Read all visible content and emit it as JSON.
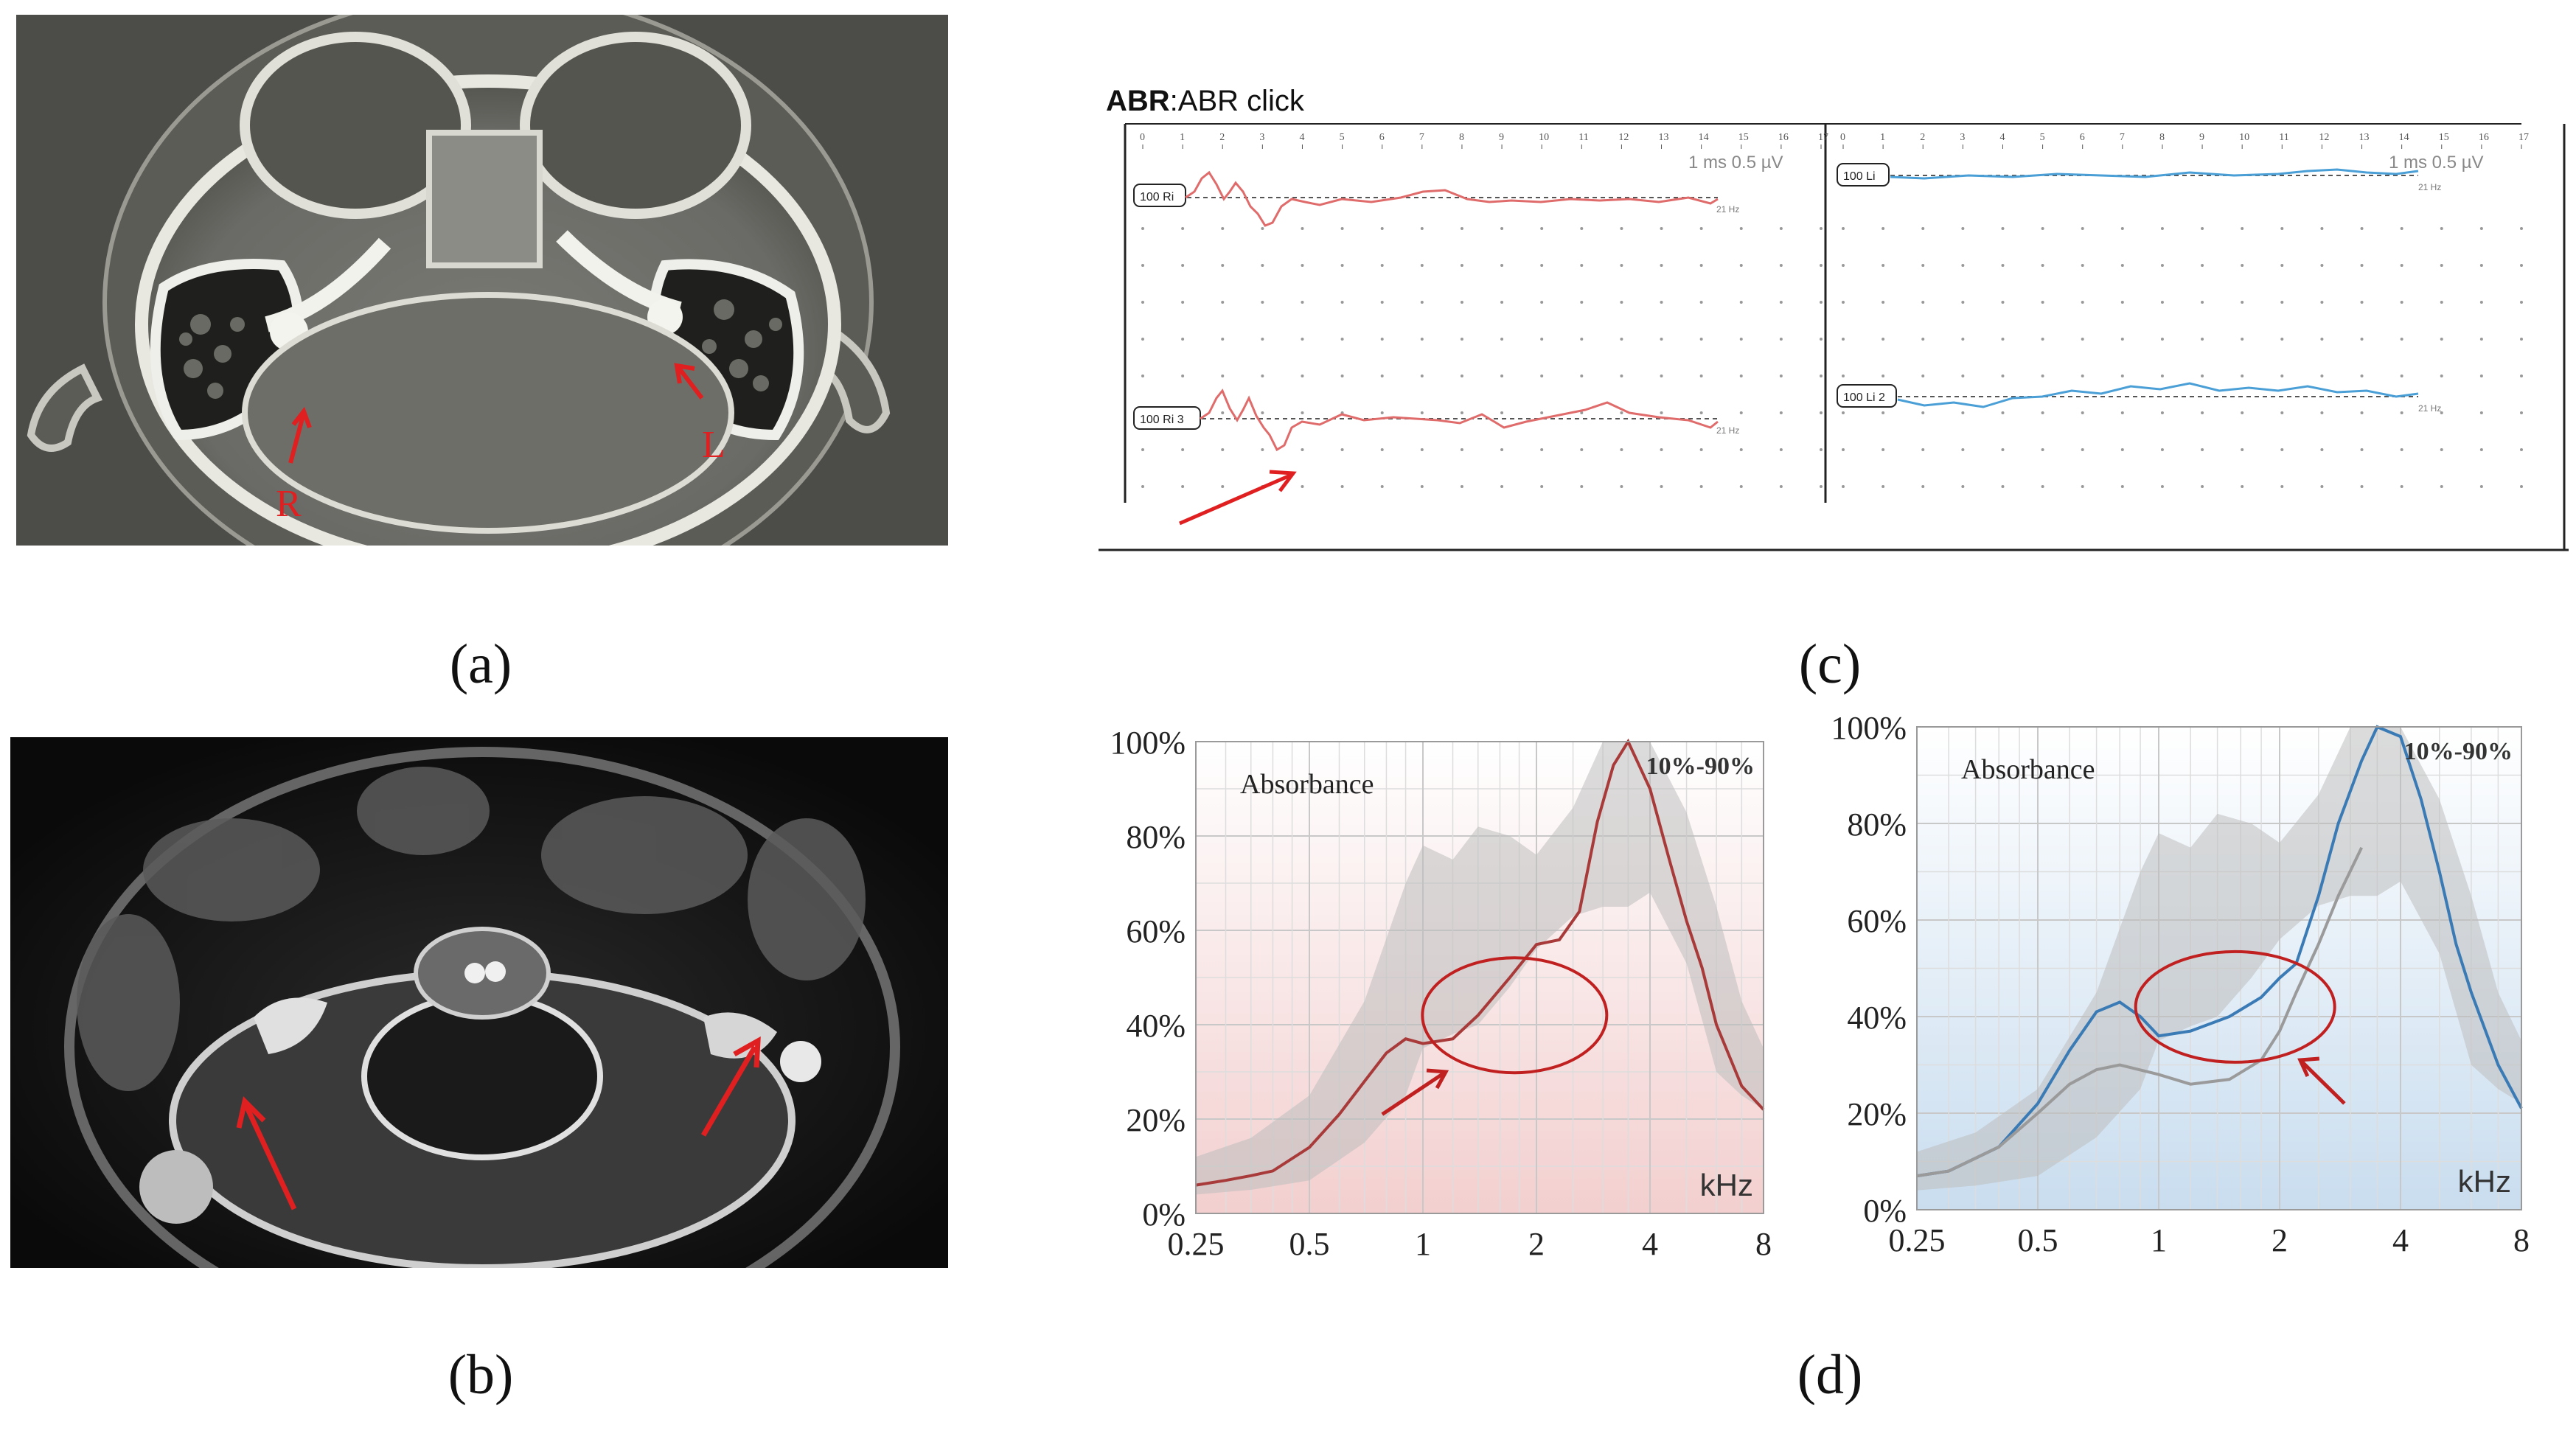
{
  "captions": {
    "a": "(a)",
    "b": "(b)",
    "c": "(c)",
    "d": "(d)"
  },
  "ct_scan": {
    "label_right": "R",
    "label_left": "L"
  },
  "abr": {
    "title_bold": "ABR",
    "title_rest": ":ABR click",
    "ms_ticks": [
      "0",
      "1",
      "2",
      "3",
      "4",
      "5",
      "6",
      "7",
      "8",
      "9",
      "10",
      "11",
      "12",
      "13",
      "14",
      "15",
      "16",
      "17"
    ],
    "scale_label": "1 ms   0.5 µV",
    "left_markers": [
      "100 Ri",
      "100 Ri 3"
    ],
    "right_markers": [
      "100 Li",
      "100 Li 2"
    ],
    "rate": "21 Hz",
    "colors": {
      "right": "#e06b6b",
      "left": "#4a9fd6"
    }
  },
  "chart_data": [
    {
      "type": "line",
      "title": "Absorbance",
      "range_label": "10%-90%",
      "xlabel": "kHz",
      "x_ticks": [
        "0.25",
        "0.5",
        "1",
        "2",
        "4",
        "8"
      ],
      "y_ticks": [
        "0%",
        "20%",
        "40%",
        "60%",
        "80%",
        "100%"
      ],
      "xscale": "log",
      "xlim": [
        0.25,
        8
      ],
      "ylim": [
        0,
        100
      ],
      "background": "red-gradient",
      "series": [
        {
          "color": "#a83a3a",
          "x": [
            0.25,
            0.3,
            0.35,
            0.4,
            0.5,
            0.6,
            0.7,
            0.8,
            0.9,
            1.0,
            1.2,
            1.4,
            1.7,
            2.0,
            2.3,
            2.6,
            2.9,
            3.2,
            3.5,
            4.0,
            4.5,
            5.0,
            5.5,
            6.0,
            7.0,
            8.0
          ],
          "y": [
            6,
            7,
            8,
            9,
            14,
            21,
            28,
            34,
            37,
            36,
            37,
            42,
            50,
            57,
            58,
            64,
            83,
            95,
            100,
            90,
            75,
            62,
            52,
            40,
            27,
            22
          ]
        }
      ],
      "band": {
        "x": [
          0.25,
          0.35,
          0.5,
          0.7,
          0.9,
          1.0,
          1.2,
          1.4,
          1.7,
          2.0,
          2.5,
          3.0,
          3.5,
          4.0,
          5.0,
          6.0,
          7.0,
          8.0
        ],
        "upper": [
          12,
          16,
          25,
          45,
          70,
          78,
          75,
          82,
          80,
          76,
          86,
          100,
          100,
          100,
          85,
          65,
          45,
          35
        ],
        "lower": [
          4,
          5,
          7,
          15,
          25,
          35,
          38,
          40,
          48,
          56,
          63,
          65,
          65,
          68,
          53,
          30,
          25,
          22
        ]
      },
      "annotation": "ellipse-and-arrow"
    },
    {
      "type": "line",
      "title": "Absorbance",
      "range_label": "10%-90%",
      "xlabel": "kHz",
      "x_ticks": [
        "0.25",
        "0.5",
        "1",
        "2",
        "4",
        "8"
      ],
      "y_ticks": [
        "0%",
        "20%",
        "40%",
        "60%",
        "80%",
        "100%"
      ],
      "xscale": "log",
      "xlim": [
        0.25,
        8
      ],
      "ylim": [
        0,
        100
      ],
      "background": "blue-gradient",
      "series": [
        {
          "color": "#3a7ab5",
          "x": [
            0.25,
            0.3,
            0.4,
            0.5,
            0.6,
            0.7,
            0.8,
            0.9,
            1.0,
            1.2,
            1.5,
            1.8,
            2.0,
            2.2,
            2.5,
            2.8,
            3.2,
            3.5,
            4.0,
            4.5,
            5.0,
            5.5,
            6.0,
            7.0,
            8.0
          ],
          "y": [
            7,
            8,
            13,
            22,
            33,
            41,
            43,
            40,
            36,
            37,
            40,
            44,
            48,
            51,
            65,
            80,
            93,
            100,
            98,
            85,
            70,
            55,
            45,
            30,
            21
          ]
        },
        {
          "color": "#9a9a9a",
          "x": [
            0.25,
            0.3,
            0.4,
            0.5,
            0.6,
            0.7,
            0.8,
            1.0,
            1.2,
            1.5,
            1.8,
            2.0,
            2.2,
            2.5,
            2.8,
            3.2
          ],
          "y": [
            7,
            8,
            13,
            20,
            26,
            29,
            30,
            28,
            26,
            27,
            31,
            37,
            45,
            55,
            65,
            75
          ]
        }
      ],
      "band": {
        "x": [
          0.25,
          0.35,
          0.5,
          0.7,
          0.9,
          1.0,
          1.2,
          1.4,
          1.7,
          2.0,
          2.5,
          3.0,
          3.5,
          4.0,
          5.0,
          6.0,
          7.0,
          8.0
        ],
        "upper": [
          12,
          16,
          25,
          45,
          70,
          78,
          75,
          82,
          80,
          76,
          86,
          100,
          100,
          100,
          85,
          65,
          45,
          35
        ],
        "lower": [
          4,
          5,
          7,
          15,
          25,
          35,
          38,
          40,
          48,
          56,
          63,
          65,
          65,
          68,
          53,
          30,
          25,
          22
        ]
      },
      "annotation": "ellipse-and-arrow"
    }
  ]
}
